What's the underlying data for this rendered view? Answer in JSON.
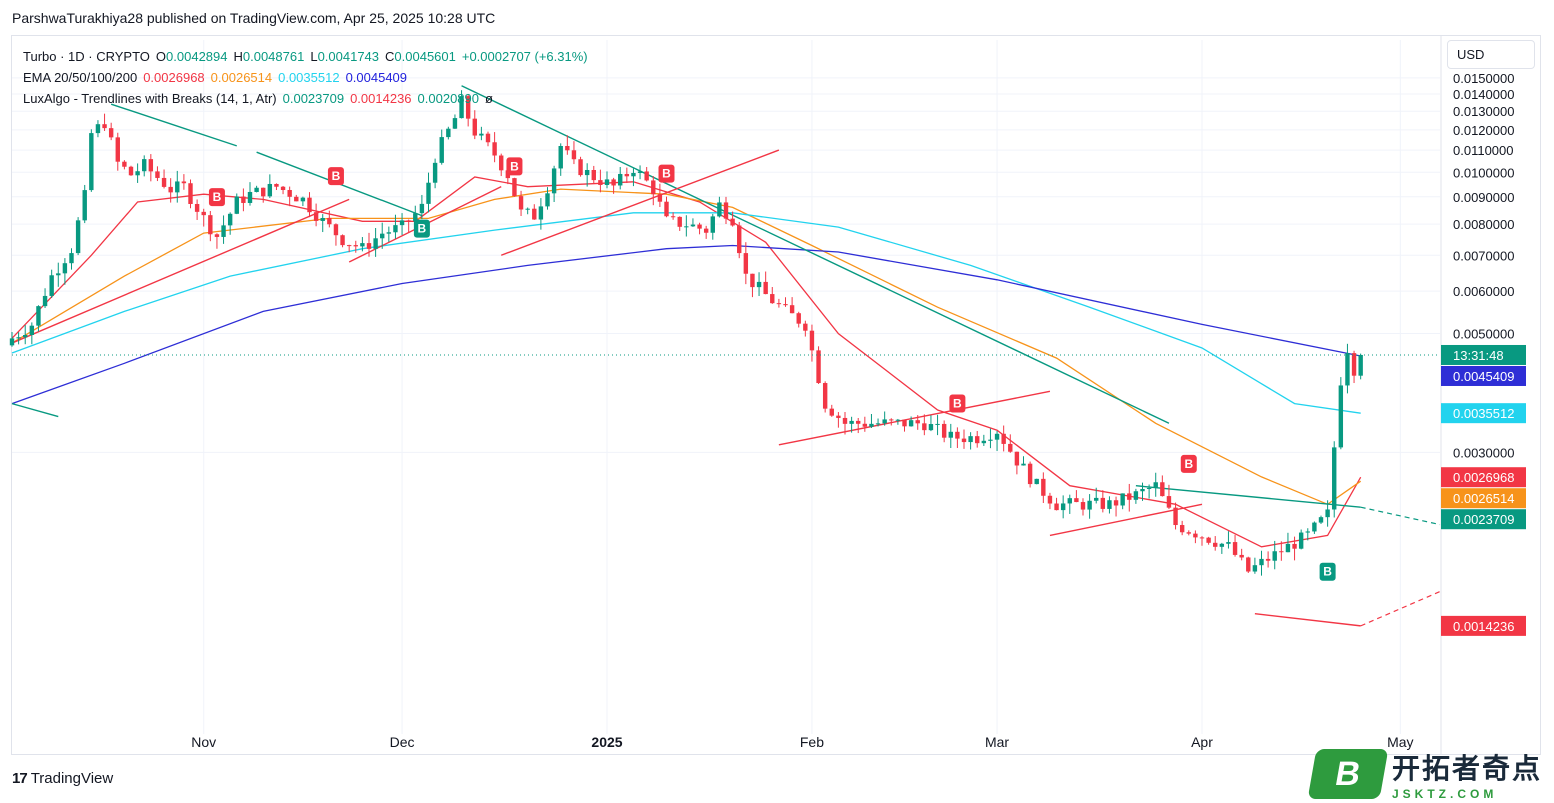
{
  "header": {
    "credit": "ParshwaTurakhiya28 published on TradingView.com, Apr 25, 2025 10:28 UTC"
  },
  "legend": {
    "symbol": "Turbo · 1D · CRYPTO",
    "o_label": "O",
    "o_value": "0.0042894",
    "h_label": "H",
    "h_value": "0.0048761",
    "l_label": "L",
    "l_value": "0.0041743",
    "c_label": "C",
    "c_value": "0.0045601",
    "change": "+0.0002707 (+6.31%)",
    "ema_label": "EMA 20/50/100/200",
    "ema_values": [
      "0.0026968",
      "0.0026514",
      "0.0035512",
      "0.0045409"
    ],
    "luxalgo_label": "LuxAlgo - Trendlines with Breaks (14, 1, Atr)",
    "luxalgo_values": [
      "0.0023709",
      "0.0014236",
      "0.0020890"
    ],
    "luxalgo_suffix": "ø"
  },
  "currency": "USD",
  "footer": {
    "brand": "TradingView",
    "brand_mark": "17"
  },
  "watermark": {
    "badge": "B",
    "cn": "开拓者奇点",
    "en": "JSKTZ.COM"
  },
  "colors": {
    "up": "#089981",
    "down": "#f23645",
    "ema20": "#f23645",
    "ema50": "#f7931a",
    "ema100": "#22d3ee",
    "ema200": "#2e2ed6",
    "trend_down": "#089981",
    "trend_up": "#f23645"
  },
  "chart_data": {
    "type": "candlestick",
    "symbol": "Turbo",
    "timeframe": "1D",
    "y_scale": "log",
    "ylim": [
      0.00095,
      0.0162
    ],
    "y_ticks": [
      "0.0150000",
      "0.0140000",
      "0.0130000",
      "0.0120000",
      "0.0110000",
      "0.0100000",
      "0.0090000",
      "0.0080000",
      "0.0070000",
      "0.0060000",
      "0.0050000",
      "0.0030000"
    ],
    "x_ticks": [
      {
        "label": "Nov",
        "date": "2024-11-01"
      },
      {
        "label": "Dec",
        "date": "2024-12-01"
      },
      {
        "label": "2025",
        "date": "2025-01-01"
      },
      {
        "label": "Feb",
        "date": "2025-02-01"
      },
      {
        "label": "Mar",
        "date": "2025-03-01"
      },
      {
        "label": "Apr",
        "date": "2025-04-01"
      },
      {
        "label": "May",
        "date": "2025-05-01"
      }
    ],
    "x_range": [
      "2024-10-03",
      "2025-05-07"
    ],
    "last_price": 0.0045601,
    "price_labels": [
      {
        "text": "13:31:48",
        "value": 0.0045601,
        "color": "#089981"
      },
      {
        "text": "0.0045409",
        "value": 0.0045409,
        "color": "#2e2ed6"
      },
      {
        "text": "0.0035512",
        "value": 0.0035512,
        "color": "#22d3ee"
      },
      {
        "text": "0.0026968",
        "value": 0.0026968,
        "color": "#f23645"
      },
      {
        "text": "0.0026514",
        "value": 0.0026514,
        "color": "#f7931a"
      },
      {
        "text": "0.0023709",
        "value": 0.0023709,
        "color": "#089981"
      },
      {
        "text": "0.0014236",
        "value": 0.0014236,
        "color": "#f23645"
      }
    ],
    "close_anchors": [
      [
        "2024-10-03",
        0.0049
      ],
      [
        "2024-10-06",
        0.0052
      ],
      [
        "2024-10-09",
        0.0064
      ],
      [
        "2024-10-12",
        0.0072
      ],
      [
        "2024-10-14",
        0.009
      ],
      [
        "2024-10-15",
        0.0118
      ],
      [
        "2024-10-17",
        0.0124
      ],
      [
        "2024-10-19",
        0.0104
      ],
      [
        "2024-10-21",
        0.0099
      ],
      [
        "2024-10-23",
        0.0103
      ],
      [
        "2024-10-27",
        0.0093
      ],
      [
        "2024-10-29",
        0.0094
      ],
      [
        "2024-11-01",
        0.0082
      ],
      [
        "2024-11-03",
        0.0076
      ],
      [
        "2024-11-06",
        0.0088
      ],
      [
        "2024-11-08",
        0.0091
      ],
      [
        "2024-11-12",
        0.0094
      ],
      [
        "2024-11-16",
        0.0089
      ],
      [
        "2024-11-19",
        0.0081
      ],
      [
        "2024-11-22",
        0.0075
      ],
      [
        "2024-11-25",
        0.0072
      ],
      [
        "2024-11-28",
        0.0077
      ],
      [
        "2024-12-01",
        0.0079
      ],
      [
        "2024-12-04",
        0.0086
      ],
      [
        "2024-12-06",
        0.0107
      ],
      [
        "2024-12-09",
        0.0126
      ],
      [
        "2024-12-10",
        0.0135
      ],
      [
        "2024-12-12",
        0.0119
      ],
      [
        "2024-12-15",
        0.0108
      ],
      [
        "2024-12-17",
        0.0099
      ],
      [
        "2024-12-19",
        0.0084
      ],
      [
        "2024-12-21",
        0.0083
      ],
      [
        "2024-12-23",
        0.0094
      ],
      [
        "2024-12-25",
        0.0112
      ],
      [
        "2024-12-27",
        0.0103
      ],
      [
        "2024-12-30",
        0.0098
      ],
      [
        "2025-01-02",
        0.0094
      ],
      [
        "2025-01-05",
        0.0102
      ],
      [
        "2025-01-08",
        0.0093
      ],
      [
        "2025-01-10",
        0.0081
      ],
      [
        "2025-01-13",
        0.008
      ],
      [
        "2025-01-16",
        0.0078
      ],
      [
        "2025-01-18",
        0.0087
      ],
      [
        "2025-01-20",
        0.0082
      ],
      [
        "2025-01-22",
        0.0064
      ],
      [
        "2025-01-25",
        0.0059
      ],
      [
        "2025-01-28",
        0.0055
      ],
      [
        "2025-01-31",
        0.0052
      ],
      [
        "2025-02-03",
        0.0037
      ],
      [
        "2025-02-06",
        0.0034
      ],
      [
        "2025-02-10",
        0.0034
      ],
      [
        "2025-02-14",
        0.0034
      ],
      [
        "2025-02-18",
        0.0034
      ],
      [
        "2025-02-22",
        0.0032
      ],
      [
        "2025-02-26",
        0.0032
      ],
      [
        "2025-03-01",
        0.0033
      ],
      [
        "2025-03-04",
        0.0029
      ],
      [
        "2025-03-07",
        0.0026
      ],
      [
        "2025-03-10",
        0.0024
      ],
      [
        "2025-03-14",
        0.0024
      ],
      [
        "2025-03-18",
        0.0024
      ],
      [
        "2025-03-22",
        0.0025
      ],
      [
        "2025-03-25",
        0.0026
      ],
      [
        "2025-03-28",
        0.0022
      ],
      [
        "2025-04-01",
        0.0021
      ],
      [
        "2025-04-05",
        0.002
      ],
      [
        "2025-04-08",
        0.0018
      ],
      [
        "2025-04-11",
        0.0019
      ],
      [
        "2025-04-14",
        0.002
      ],
      [
        "2025-04-17",
        0.0021
      ],
      [
        "2025-04-20",
        0.0023
      ],
      [
        "2025-04-22",
        0.0041
      ],
      [
        "2025-04-23",
        0.0047
      ],
      [
        "2025-04-24",
        0.0043
      ],
      [
        "2025-04-25",
        0.0045601
      ]
    ],
    "ema_series": [
      {
        "name": "EMA 20",
        "color": "#f23645",
        "points": [
          [
            "2024-10-03",
            0.0049
          ],
          [
            "2024-10-15",
            0.007
          ],
          [
            "2024-10-22",
            0.0088
          ],
          [
            "2024-11-01",
            0.0091
          ],
          [
            "2024-11-10",
            0.0089
          ],
          [
            "2024-11-25",
            0.0081
          ],
          [
            "2024-12-03",
            0.0081
          ],
          [
            "2024-12-12",
            0.0098
          ],
          [
            "2024-12-20",
            0.0094
          ],
          [
            "2025-01-05",
            0.0096
          ],
          [
            "2025-01-15",
            0.0088
          ],
          [
            "2025-01-25",
            0.0074
          ],
          [
            "2025-02-05",
            0.005
          ],
          [
            "2025-02-20",
            0.0036
          ],
          [
            "2025-03-01",
            0.0033
          ],
          [
            "2025-03-12",
            0.0026
          ],
          [
            "2025-03-28",
            0.0024
          ],
          [
            "2025-04-10",
            0.002
          ],
          [
            "2025-04-20",
            0.0021
          ],
          [
            "2025-04-25",
            0.0026968
          ]
        ]
      },
      {
        "name": "EMA 50",
        "color": "#f7931a",
        "points": [
          [
            "2024-10-03",
            0.0048
          ],
          [
            "2024-10-20",
            0.0064
          ],
          [
            "2024-11-01",
            0.0077
          ],
          [
            "2024-11-20",
            0.0082
          ],
          [
            "2024-12-05",
            0.0082
          ],
          [
            "2024-12-15",
            0.0089
          ],
          [
            "2024-12-25",
            0.0093
          ],
          [
            "2025-01-10",
            0.0091
          ],
          [
            "2025-01-20",
            0.0086
          ],
          [
            "2025-02-01",
            0.0073
          ],
          [
            "2025-02-20",
            0.0056
          ],
          [
            "2025-03-10",
            0.0045
          ],
          [
            "2025-03-25",
            0.0034
          ],
          [
            "2025-04-10",
            0.0027
          ],
          [
            "2025-04-20",
            0.0024
          ],
          [
            "2025-04-25",
            0.0026514
          ]
        ]
      },
      {
        "name": "EMA 100",
        "color": "#22d3ee",
        "points": [
          [
            "2024-10-03",
            0.0046
          ],
          [
            "2024-10-20",
            0.0055
          ],
          [
            "2024-11-05",
            0.0064
          ],
          [
            "2024-11-25",
            0.0072
          ],
          [
            "2024-12-15",
            0.0078
          ],
          [
            "2025-01-05",
            0.0084
          ],
          [
            "2025-01-20",
            0.0084
          ],
          [
            "2025-02-05",
            0.0079
          ],
          [
            "2025-02-25",
            0.0067
          ],
          [
            "2025-03-15",
            0.0056
          ],
          [
            "2025-04-01",
            0.0047
          ],
          [
            "2025-04-15",
            0.0037
          ],
          [
            "2025-04-25",
            0.0035512
          ]
        ]
      },
      {
        "name": "EMA 200",
        "color": "#2e2ed6",
        "points": [
          [
            "2024-10-03",
            0.0037
          ],
          [
            "2024-10-20",
            0.0044
          ],
          [
            "2024-11-10",
            0.0055
          ],
          [
            "2024-12-01",
            0.0062
          ],
          [
            "2024-12-20",
            0.0067
          ],
          [
            "2025-01-10",
            0.0072
          ],
          [
            "2025-01-20",
            0.0073
          ],
          [
            "2025-02-05",
            0.0071
          ],
          [
            "2025-03-01",
            0.0063
          ],
          [
            "2025-04-01",
            0.0052
          ],
          [
            "2025-04-25",
            0.0045409
          ]
        ]
      }
    ],
    "trendlines": [
      {
        "kind": "resistance",
        "color": "#089981",
        "from": [
          "2024-10-18",
          0.0134
        ],
        "to": [
          "2024-11-06",
          0.0112
        ]
      },
      {
        "kind": "resistance",
        "color": "#089981",
        "from": [
          "2024-11-09",
          0.0109
        ],
        "to": [
          "2024-12-04",
          0.0083
        ]
      },
      {
        "kind": "resistance",
        "color": "#089981",
        "from": [
          "2024-12-10",
          0.0145
        ],
        "to": [
          "2025-03-27",
          0.0034
        ]
      },
      {
        "kind": "resistance",
        "color": "#089981",
        "from": [
          "2024-10-03",
          0.0037
        ],
        "to": [
          "2024-10-10",
          0.0035
        ]
      },
      {
        "kind": "resistance",
        "color": "#089981",
        "from": [
          "2025-03-22",
          0.0026
        ],
        "to": [
          "2025-04-25",
          0.0023709
        ],
        "extend_dashed_to": [
          "2025-05-07",
          0.0022
        ]
      },
      {
        "kind": "support",
        "color": "#f23645",
        "from": [
          "2024-10-03",
          0.0048
        ],
        "to": [
          "2024-11-23",
          0.0089
        ]
      },
      {
        "kind": "support",
        "color": "#f23645",
        "from": [
          "2024-11-23",
          0.0068
        ],
        "to": [
          "2024-12-16",
          0.0094
        ]
      },
      {
        "kind": "support",
        "color": "#f23645",
        "from": [
          "2024-12-16",
          0.007
        ],
        "to": [
          "2025-01-27",
          0.011
        ]
      },
      {
        "kind": "support",
        "color": "#f23645",
        "from": [
          "2025-01-27",
          0.0031
        ],
        "to": [
          "2025-03-09",
          0.0039
        ]
      },
      {
        "kind": "support",
        "color": "#f23645",
        "from": [
          "2025-03-09",
          0.0021
        ],
        "to": [
          "2025-04-01",
          0.0024
        ]
      },
      {
        "kind": "support",
        "color": "#f23645",
        "from": [
          "2025-04-09",
          0.0015
        ],
        "to": [
          "2025-04-25",
          0.0014236
        ],
        "extend_dashed_to": [
          "2025-05-07",
          0.00165
        ]
      }
    ],
    "break_labels": [
      {
        "text": "B",
        "date": "2024-11-03",
        "value": 0.0085,
        "color": "#f23645",
        "position": "above"
      },
      {
        "text": "B",
        "date": "2024-11-21",
        "value": 0.0093,
        "color": "#f23645",
        "position": "above"
      },
      {
        "text": "B",
        "date": "2024-12-04",
        "value": 0.0083,
        "color": "#089981",
        "position": "below"
      },
      {
        "text": "B",
        "date": "2024-12-18",
        "value": 0.0097,
        "color": "#f23645",
        "position": "above"
      },
      {
        "text": "B",
        "date": "2025-01-10",
        "value": 0.0094,
        "color": "#f23645",
        "position": "above"
      },
      {
        "text": "B",
        "date": "2025-02-23",
        "value": 0.0035,
        "color": "#f23645",
        "position": "above"
      },
      {
        "text": "B",
        "date": "2025-03-30",
        "value": 0.0027,
        "color": "#f23645",
        "position": "above"
      },
      {
        "text": "B",
        "date": "2025-04-20",
        "value": 0.0019,
        "color": "#089981",
        "position": "below"
      }
    ]
  }
}
